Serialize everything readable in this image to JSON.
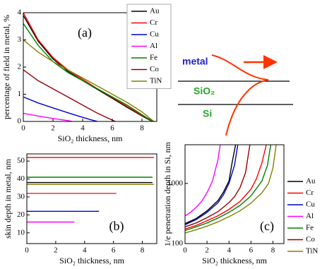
{
  "chart_data": [
    {
      "type": "line",
      "label": "(a)",
      "xlabel": "SiO₂ thickness, nm",
      "ylabel": "percentage of field in metal, %",
      "xlim": [
        0,
        9
      ],
      "xticks": [
        0,
        2,
        4,
        6,
        8
      ],
      "ylim": [
        0,
        4
      ],
      "yticks": [
        0,
        1,
        2,
        3,
        4
      ],
      "legend": "upper right",
      "series": [
        {
          "name": "Au",
          "color": "#000000",
          "x": [
            0,
            1,
            2,
            3,
            4,
            5,
            6,
            7,
            8,
            8.7
          ],
          "values": [
            3.9,
            2.95,
            2.3,
            1.85,
            1.5,
            1.18,
            0.85,
            0.52,
            0.2,
            0
          ]
        },
        {
          "name": "Cr",
          "color": "#ff0000",
          "x": [
            0,
            1,
            2,
            3,
            4,
            5,
            6,
            7,
            8,
            8.8
          ],
          "values": [
            4.0,
            3.0,
            2.35,
            1.9,
            1.55,
            1.2,
            0.88,
            0.55,
            0.22,
            0
          ]
        },
        {
          "name": "Cu",
          "color": "#0000cc",
          "x": [
            0,
            1,
            2,
            3,
            4,
            4.5,
            5
          ],
          "values": [
            0.9,
            0.68,
            0.5,
            0.32,
            0.15,
            0.07,
            0
          ]
        },
        {
          "name": "Al",
          "color": "#ff00ff",
          "x": [
            0,
            1,
            2,
            3,
            3.3
          ],
          "values": [
            0.3,
            0.2,
            0.11,
            0.03,
            0
          ]
        },
        {
          "name": "Fe",
          "color": "#008000",
          "x": [
            0,
            1,
            2,
            3,
            4,
            5,
            6,
            7,
            8,
            8.7
          ],
          "values": [
            3.6,
            2.8,
            2.2,
            1.8,
            1.5,
            1.2,
            0.9,
            0.6,
            0.25,
            0
          ]
        },
        {
          "name": "Co",
          "color": "#990000",
          "x": [
            0,
            1,
            2,
            3,
            4,
            5,
            6,
            6.2
          ],
          "values": [
            1.9,
            1.5,
            1.2,
            0.9,
            0.6,
            0.3,
            0.05,
            0
          ]
        },
        {
          "name": "TiN",
          "color": "#808000",
          "x": [
            0,
            1,
            2,
            3,
            4,
            5,
            6,
            7,
            8,
            8.8
          ],
          "values": [
            3.0,
            2.55,
            2.2,
            1.9,
            1.6,
            1.3,
            1.0,
            0.7,
            0.35,
            0
          ]
        }
      ]
    },
    {
      "type": "line",
      "label": "(b)",
      "xlabel": "SiO₂ thickness, nm",
      "ylabel": "skin depth in metal, nm",
      "xlim": [
        0,
        9
      ],
      "xticks": [
        0,
        2,
        4,
        6,
        8
      ],
      "ylim": [
        4,
        54
      ],
      "yticks": [
        10,
        20,
        30,
        40,
        50
      ],
      "series": [
        {
          "color": "#000000",
          "x": [
            0,
            8.7
          ],
          "values": [
            38,
            38
          ]
        },
        {
          "color": "#ff0000",
          "x": [
            0,
            8.8
          ],
          "values": [
            52,
            52
          ]
        },
        {
          "color": "#0000cc",
          "x": [
            0,
            5
          ],
          "values": [
            22,
            22
          ]
        },
        {
          "color": "#ff00ff",
          "x": [
            0,
            3.3
          ],
          "values": [
            16,
            16
          ]
        },
        {
          "color": "#008000",
          "x": [
            0,
            8.7
          ],
          "values": [
            41,
            41
          ]
        },
        {
          "color": "#cc3333",
          "x": [
            0,
            6.2
          ],
          "values": [
            32,
            32
          ]
        },
        {
          "color": "#808000",
          "x": [
            0,
            8.8
          ],
          "values": [
            37,
            37
          ]
        }
      ]
    },
    {
      "type": "line",
      "label": "(c)",
      "xlabel": "SiO₂ thickness, nm",
      "ylabel": "1/e penetration depth in Si, nm",
      "xlim": [
        0,
        9
      ],
      "xticks": [
        0,
        2,
        4,
        6,
        8
      ],
      "ylim": [
        100,
        4400
      ],
      "yticks": [
        100,
        1000
      ],
      "yscale": "log",
      "legend": "right",
      "series": [
        {
          "name": "Au",
          "color": "#000000",
          "x": [
            0,
            1,
            2,
            3,
            3.5,
            4,
            4.3,
            4.6
          ],
          "values": [
            215,
            260,
            350,
            520,
            720,
            1100,
            2300,
            4400
          ]
        },
        {
          "name": "Cr",
          "color": "#ff0000",
          "x": [
            0,
            1,
            2,
            3,
            4,
            5,
            6,
            6.5,
            7,
            7.4
          ],
          "values": [
            175,
            200,
            240,
            290,
            370,
            500,
            800,
            1200,
            2200,
            4400
          ]
        },
        {
          "name": "Cu",
          "color": "#0000cc",
          "x": [
            0,
            1,
            2,
            3,
            3.5,
            4,
            4.5,
            4.8
          ],
          "values": [
            205,
            250,
            330,
            480,
            650,
            1000,
            2000,
            4400
          ]
        },
        {
          "name": "Al",
          "color": "#ff00ff",
          "x": [
            0,
            0.5,
            1,
            1.5,
            2,
            2.5,
            3,
            3.2
          ],
          "values": [
            290,
            330,
            400,
            500,
            700,
            1100,
            2500,
            4400
          ]
        },
        {
          "name": "Fe",
          "color": "#008000",
          "x": [
            0,
            1,
            2,
            3,
            4,
            5,
            6,
            7,
            7.5,
            7.8
          ],
          "values": [
            165,
            190,
            220,
            265,
            330,
            430,
            620,
            1100,
            2000,
            4400
          ]
        },
        {
          "name": "Co",
          "color": "#990000",
          "x": [
            0,
            1,
            2,
            3,
            4,
            4.5,
            5,
            5.5,
            5.9
          ],
          "values": [
            190,
            220,
            270,
            340,
            480,
            600,
            850,
            1500,
            4400
          ]
        },
        {
          "name": "TiN",
          "color": "#808000",
          "x": [
            0,
            1,
            2,
            3,
            4,
            5,
            6,
            7,
            7.6,
            8,
            8.3
          ],
          "values": [
            150,
            170,
            195,
            230,
            280,
            350,
            470,
            700,
            1000,
            1800,
            4400
          ]
        }
      ]
    }
  ],
  "diagram": {
    "labels": [
      "metal",
      "SiO₂",
      "Si"
    ]
  }
}
